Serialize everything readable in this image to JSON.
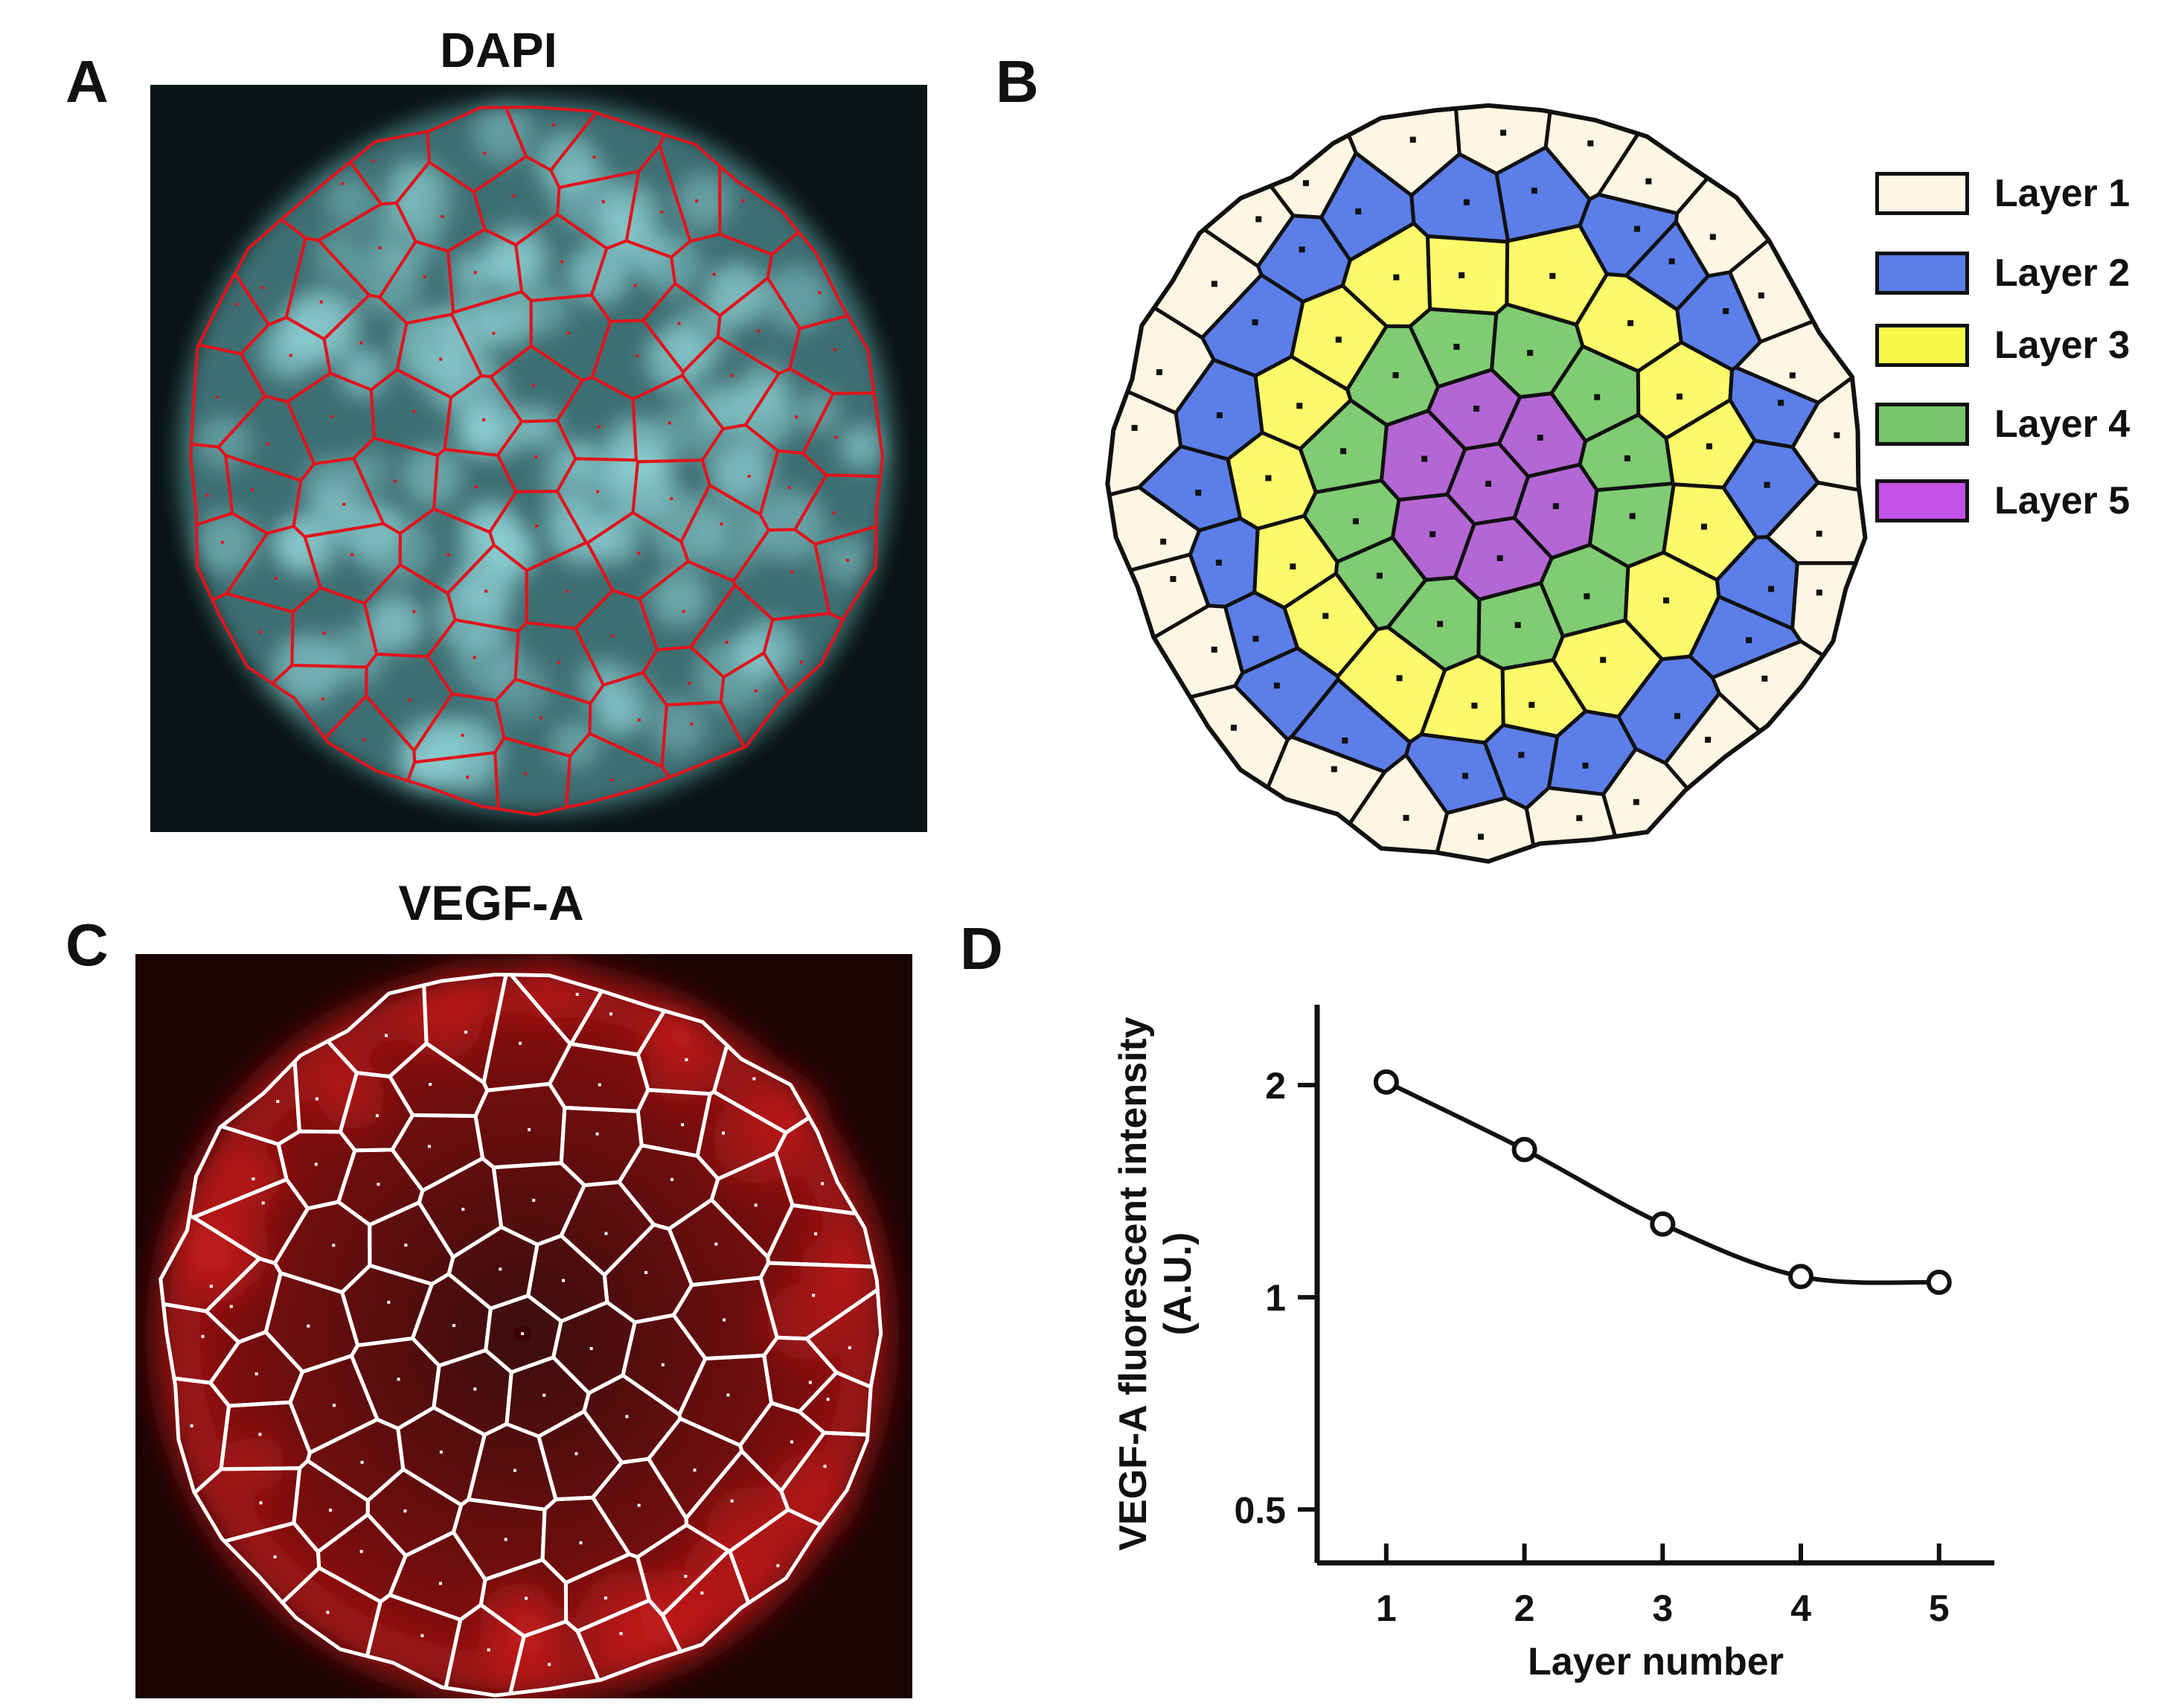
{
  "panels": {
    "a": {
      "letter": "A",
      "title": "DAPI"
    },
    "b": {
      "letter": "B"
    },
    "c": {
      "letter": "C",
      "title": "VEGF-A"
    },
    "d": {
      "letter": "D"
    }
  },
  "colors": {
    "dapi_background": "#0a1414",
    "dapi_nuclei": "#8fd3d6",
    "dapi_lines": "#e0141c",
    "vegf_background": "#1a0303",
    "vegf_signal": "#b01818",
    "vegf_lines": "#ffffff",
    "layer_1": "#fdf6e3",
    "layer_2": "#5b7ee8",
    "layer_3": "#fafa6a",
    "layer_4": "#7fcc72",
    "layer_5": "#b466d4"
  },
  "legend": [
    {
      "label": "Layer 1",
      "color": "#fdf6e3"
    },
    {
      "label": "Layer 2",
      "color": "#5b7ee8"
    },
    {
      "label": "Layer 3",
      "color": "#f7f64a"
    },
    {
      "label": "Layer 4",
      "color": "#76c56a"
    },
    {
      "label": "Layer 5",
      "color": "#c552e6"
    }
  ],
  "chart_data": {
    "type": "line",
    "title": "",
    "xlabel": "Layer number",
    "ylabel": "VEGF-A fluorescent intensity (A.U.)",
    "ylabel_lines": [
      "VEGF-A fluorescent intensity",
      "(A.U.)"
    ],
    "y_scale": "log",
    "xlim": [
      0.5,
      5.4
    ],
    "ylim": [
      0.42,
      2.6
    ],
    "x_ticks": [
      1,
      2,
      3,
      4,
      5
    ],
    "x_tick_labels": [
      "1",
      "2",
      "3",
      "4",
      "5"
    ],
    "y_ticks": [
      0.5,
      1,
      2
    ],
    "y_tick_labels": [
      "0.5",
      "1",
      "2"
    ],
    "series": [
      {
        "x": [
          1,
          2,
          3,
          4,
          5
        ],
        "values": [
          2.02,
          1.62,
          1.27,
          1.07,
          1.05
        ]
      }
    ],
    "grid": false
  }
}
